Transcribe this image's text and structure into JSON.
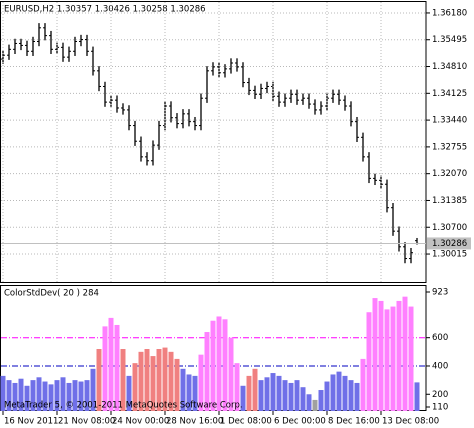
{
  "chart_data": [
    {
      "type": "ohlc",
      "title": "EURUSD,H2  1.30357 1.30426 1.30258 1.30286",
      "color": "#000000",
      "grid": true,
      "current_price": {
        "value": 1.30286,
        "label": "1.30286"
      },
      "ylim": [
        1.293,
        1.3646
      ],
      "yticks": [
        {
          "value": 1.3618,
          "label": "1.36180"
        },
        {
          "value": 1.35495,
          "label": "1.35495"
        },
        {
          "value": 1.3481,
          "label": "1.34810"
        },
        {
          "value": 1.34125,
          "label": "1.34125"
        },
        {
          "value": 1.3344,
          "label": "1.33440"
        },
        {
          "value": 1.32755,
          "label": "1.32755"
        },
        {
          "value": 1.3207,
          "label": "1.32070"
        },
        {
          "value": 1.31385,
          "label": "1.31385"
        },
        {
          "value": 1.307,
          "label": "1.30700"
        },
        {
          "value": 1.30015,
          "label": "1.30015"
        }
      ],
      "open": [
        1.35,
        1.351,
        1.3525,
        1.354,
        1.3535,
        1.352,
        1.3545,
        1.358,
        1.356,
        1.3525,
        1.353,
        1.3505,
        1.352,
        1.3545,
        1.355,
        1.352,
        1.347,
        1.343,
        1.339,
        1.3395,
        1.3375,
        1.337,
        1.333,
        1.329,
        1.325,
        1.324,
        1.328,
        1.333,
        1.338,
        1.335,
        1.3335,
        1.336,
        1.334,
        1.333,
        1.34,
        1.347,
        1.348,
        1.3465,
        1.3475,
        1.349,
        1.348,
        1.344,
        1.342,
        1.341,
        1.3425,
        1.343,
        1.3405,
        1.339,
        1.34,
        1.341,
        1.3395,
        1.34,
        1.3385,
        1.337,
        1.338,
        1.34,
        1.341,
        1.3395,
        1.338,
        1.334,
        1.33,
        1.325,
        1.3195,
        1.319,
        1.318,
        1.312,
        1.306,
        1.302,
        1.299,
        1.30357
      ],
      "high": [
        1.3522,
        1.3537,
        1.3552,
        1.3552,
        1.3547,
        1.3557,
        1.3592,
        1.3592,
        1.3572,
        1.3542,
        1.3542,
        1.3532,
        1.3557,
        1.3562,
        1.3562,
        1.3532,
        1.3482,
        1.3442,
        1.3407,
        1.3407,
        1.3387,
        1.3382,
        1.3342,
        1.3302,
        1.3262,
        1.3292,
        1.3342,
        1.3392,
        1.3392,
        1.3362,
        1.3372,
        1.3372,
        1.3352,
        1.3412,
        1.3482,
        1.3492,
        1.3492,
        1.3487,
        1.3502,
        1.3502,
        1.3492,
        1.3452,
        1.3432,
        1.3437,
        1.3442,
        1.3442,
        1.3417,
        1.3412,
        1.3422,
        1.3422,
        1.3412,
        1.3412,
        1.3397,
        1.3392,
        1.3412,
        1.3422,
        1.3422,
        1.3407,
        1.3392,
        1.3352,
        1.3312,
        1.3262,
        1.3207,
        1.3202,
        1.3192,
        1.3132,
        1.3072,
        1.3032,
        1.3017,
        1.30426
      ],
      "low": [
        1.3488,
        1.3498,
        1.3513,
        1.3523,
        1.3508,
        1.3508,
        1.3533,
        1.3548,
        1.3513,
        1.3513,
        1.3493,
        1.3493,
        1.3508,
        1.3533,
        1.3508,
        1.3458,
        1.3418,
        1.3378,
        1.3378,
        1.3363,
        1.3358,
        1.3318,
        1.3278,
        1.3238,
        1.3228,
        1.3228,
        1.3268,
        1.3318,
        1.3338,
        1.3323,
        1.3323,
        1.3328,
        1.3318,
        1.3318,
        1.3388,
        1.3458,
        1.3453,
        1.3453,
        1.3463,
        1.3468,
        1.3428,
        1.3408,
        1.3398,
        1.3398,
        1.3413,
        1.3393,
        1.3378,
        1.3378,
        1.3388,
        1.3383,
        1.3383,
        1.3373,
        1.3358,
        1.3358,
        1.3368,
        1.3388,
        1.3383,
        1.3368,
        1.3328,
        1.3288,
        1.3238,
        1.3183,
        1.3178,
        1.3168,
        1.3108,
        1.3048,
        1.3008,
        1.2978,
        1.2978,
        1.30258
      ],
      "close": [
        1.351,
        1.3525,
        1.354,
        1.3535,
        1.352,
        1.3545,
        1.358,
        1.356,
        1.3525,
        1.353,
        1.3505,
        1.352,
        1.3545,
        1.355,
        1.352,
        1.347,
        1.343,
        1.339,
        1.3395,
        1.3375,
        1.337,
        1.333,
        1.329,
        1.325,
        1.324,
        1.328,
        1.333,
        1.338,
        1.335,
        1.3335,
        1.336,
        1.334,
        1.333,
        1.34,
        1.347,
        1.348,
        1.3465,
        1.3475,
        1.349,
        1.348,
        1.344,
        1.342,
        1.341,
        1.3425,
        1.343,
        1.3405,
        1.339,
        1.34,
        1.341,
        1.3395,
        1.34,
        1.3385,
        1.337,
        1.338,
        1.34,
        1.341,
        1.3395,
        1.338,
        1.334,
        1.33,
        1.325,
        1.3195,
        1.319,
        1.318,
        1.312,
        1.306,
        1.302,
        1.299,
        1.3005,
        1.30286
      ]
    },
    {
      "type": "bar",
      "title": "ColorStdDev( 20 ) 284",
      "watermark": "MetaTrader 5, © 2001-2011 MetaQuotes Software Corp.",
      "ylim": [
        110,
        923
      ],
      "yticks": [
        923,
        600,
        400,
        200,
        110
      ],
      "levels": [
        {
          "value": 600,
          "color": "#ff00ff"
        },
        {
          "value": 400,
          "color": "#0000c0"
        }
      ],
      "categories": [
        "16 Nov 2011",
        null,
        null,
        null,
        null,
        null,
        null,
        null,
        null,
        "21 Nov 08:00",
        null,
        null,
        null,
        null,
        null,
        null,
        null,
        null,
        "24 Nov 00:00",
        null,
        null,
        null,
        null,
        null,
        null,
        null,
        null,
        "28 Nov 16:00",
        null,
        null,
        null,
        null,
        null,
        null,
        null,
        null,
        "1 Dec 08:00",
        null,
        null,
        null,
        null,
        null,
        null,
        null,
        null,
        "6 Dec 00:00",
        null,
        null,
        null,
        null,
        null,
        null,
        null,
        null,
        "8 Dec 16:00",
        null,
        null,
        null,
        null,
        null,
        null,
        null,
        null,
        "13 Dec 08:00",
        null,
        null,
        null,
        null,
        null,
        null
      ],
      "values": [
        330,
        300,
        280,
        310,
        260,
        300,
        320,
        290,
        270,
        300,
        320,
        280,
        300,
        290,
        300,
        380,
        520,
        680,
        740,
        690,
        520,
        330,
        420,
        500,
        520,
        470,
        520,
        530,
        500,
        450,
        380,
        340,
        330,
        480,
        640,
        720,
        750,
        730,
        600,
        420,
        260,
        330,
        380,
        300,
        320,
        350,
        330,
        300,
        280,
        300,
        250,
        200,
        160,
        230,
        290,
        340,
        360,
        330,
        300,
        280,
        450,
        780,
        880,
        860,
        800,
        820,
        860,
        890,
        820,
        284
      ],
      "colors": [
        "#7070e8",
        "#7070e8",
        "#7070e8",
        "#7070e8",
        "#7070e8",
        "#7070e8",
        "#7070e8",
        "#7070e8",
        "#7070e8",
        "#7070e8",
        "#7070e8",
        "#7070e8",
        "#7070e8",
        "#7070e8",
        "#7070e8",
        "#7070e8",
        "#f08080",
        "#ff80ff",
        "#ff80ff",
        "#ff80ff",
        "#f08080",
        "#7070e8",
        "#f08080",
        "#f08080",
        "#f08080",
        "#f08080",
        "#f08080",
        "#f08080",
        "#f08080",
        "#f08080",
        "#7070e8",
        "#7070e8",
        "#7070e8",
        "#ff80ff",
        "#ff80ff",
        "#ff80ff",
        "#ff80ff",
        "#ff80ff",
        "#ff80ff",
        "#ff80ff",
        "#7070e8",
        "#f08080",
        "#f08080",
        "#7070e8",
        "#7070e8",
        "#7070e8",
        "#7070e8",
        "#7070e8",
        "#7070e8",
        "#7070e8",
        "#7070e8",
        "#7070e8",
        "#a0a0a0",
        "#7070e8",
        "#7070e8",
        "#7070e8",
        "#7070e8",
        "#7070e8",
        "#7070e8",
        "#7070e8",
        "#ff80ff",
        "#ff80ff",
        "#ff80ff",
        "#ff80ff",
        "#ff80ff",
        "#ff80ff",
        "#ff80ff",
        "#ff80ff",
        "#ff80ff",
        "#7070e8"
      ]
    }
  ]
}
